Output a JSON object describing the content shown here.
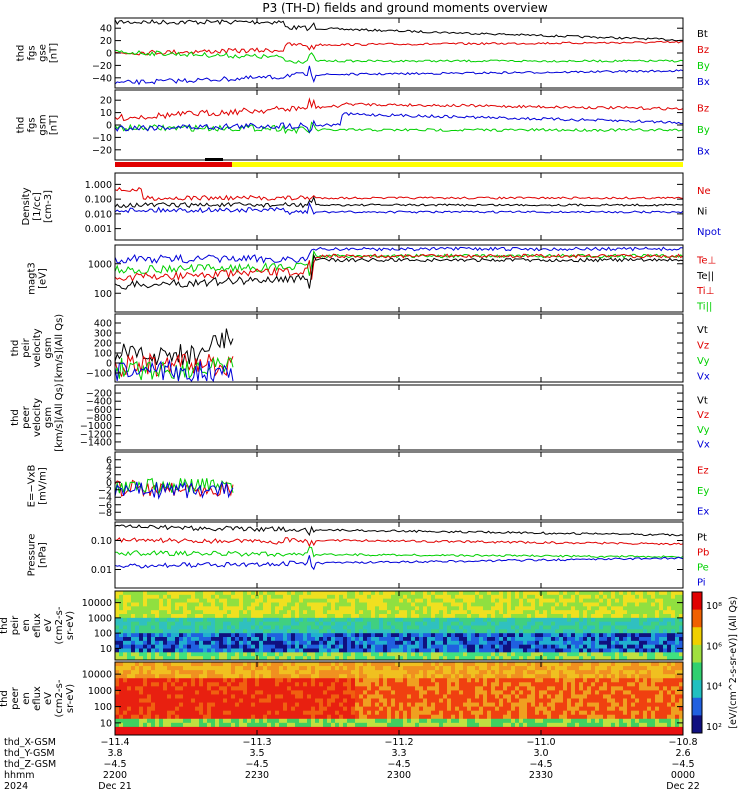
{
  "title": "P3 (TH-D) fields and ground moments overview",
  "colors": {
    "black": "#000000",
    "red": "#e00000",
    "green": "#00d000",
    "blue": "#0000d8",
    "yellow": "#ffff00"
  },
  "panels": [
    {
      "id": "fgs-gse",
      "ylabel": [
        "thd",
        "fgs",
        "gse",
        "[nT]"
      ],
      "yticks": [
        "40",
        "20",
        "0",
        "−20",
        "−40"
      ],
      "ylim": [
        -40,
        46
      ],
      "legend": [
        {
          "t": "Bt",
          "c": "black"
        },
        {
          "t": "Bz",
          "c": "red"
        },
        {
          "t": "By",
          "c": "green"
        },
        {
          "t": "Bx",
          "c": "blue"
        }
      ]
    },
    {
      "id": "fgs-gsm",
      "ylabel": [
        "thd",
        "fgs",
        "gsm",
        "[nT]"
      ],
      "yticks": [
        "20",
        "10",
        "0",
        "−10",
        "−20"
      ],
      "ylim": [
        -26,
        22
      ],
      "legend": [
        {
          "t": "Bz",
          "c": "red"
        },
        {
          "t": "By",
          "c": "green"
        },
        {
          "t": "Bx",
          "c": "blue"
        }
      ]
    },
    {
      "id": "density",
      "ylabel": [
        "Density",
        "[1/cc]",
        "[cm-3]"
      ],
      "yticks": [
        "1.000",
        "0.100",
        "0.010",
        "0.001"
      ],
      "log": true,
      "legend": [
        {
          "t": "Ne",
          "c": "red"
        },
        {
          "t": "Ni",
          "c": "black"
        },
        {
          "t": "Npot",
          "c": "blue"
        }
      ]
    },
    {
      "id": "temp",
      "ylabel": [
        "magt3",
        "[eV]"
      ],
      "yticks": [
        "1000",
        "100"
      ],
      "log": true,
      "legend": [
        {
          "t": "Te⊥",
          "c": "red"
        },
        {
          "t": "Te||",
          "c": "black"
        },
        {
          "t": "Ti⊥",
          "c": "red"
        },
        {
          "t": "Ti||",
          "c": "green"
        }
      ]
    },
    {
      "id": "peir-vel",
      "ylabel": [
        "thd",
        "peir",
        "velocity",
        "gsm",
        "[km/s](All Qs)"
      ],
      "yticks": [
        "400",
        "300",
        "200",
        "100",
        "0",
        "−100"
      ],
      "ylim": [
        -120,
        470
      ],
      "legend": [
        {
          "t": "Vt",
          "c": "black"
        },
        {
          "t": "Vz",
          "c": "red"
        },
        {
          "t": "Vy",
          "c": "green"
        },
        {
          "t": "Vx",
          "c": "blue"
        }
      ]
    },
    {
      "id": "peer-vel",
      "ylabel": [
        "thd",
        "peer",
        "velocity",
        "gsm",
        "[km/s](All Qs)"
      ],
      "yticks": [
        "−200",
        "−400",
        "−600",
        "−800",
        "−1000",
        "−1200",
        "−1400"
      ],
      "legend": [
        {
          "t": "Vt",
          "c": "black"
        },
        {
          "t": "Vz",
          "c": "red"
        },
        {
          "t": "Vy",
          "c": "green"
        },
        {
          "t": "Vx",
          "c": "blue"
        }
      ]
    },
    {
      "id": "efield",
      "ylabel": [
        "E=−VxB",
        "[mV/m]"
      ],
      "yticks": [
        "6",
        "4",
        "2",
        "0",
        "−2",
        "−4",
        "−6",
        "−8"
      ],
      "ylim": [
        -9,
        7
      ],
      "legend": [
        {
          "t": "Ez",
          "c": "red"
        },
        {
          "t": "Ey",
          "c": "green"
        },
        {
          "t": "Ex",
          "c": "blue"
        }
      ]
    },
    {
      "id": "pressure",
      "ylabel": [
        "Pressure",
        "[nPa]"
      ],
      "yticks": [
        "0.10",
        "0.01"
      ],
      "log": true,
      "legend": [
        {
          "t": "Pt",
          "c": "black"
        },
        {
          "t": "Pb",
          "c": "red"
        },
        {
          "t": "Pe",
          "c": "green"
        },
        {
          "t": "Pi",
          "c": "blue"
        }
      ]
    },
    {
      "id": "peir-eflux",
      "ylabel": [
        "thd",
        "peir",
        "en",
        "eflux",
        "eV",
        "(cm2-s-",
        "sr-eV)"
      ],
      "yticks": [
        "10000",
        "1000",
        "100",
        "10"
      ]
    },
    {
      "id": "peer-eflux",
      "ylabel": [
        "thd",
        "peer",
        "en",
        "eflux",
        "eV",
        "(cm2-s-",
        "sr-eV)"
      ],
      "yticks": [
        "10000",
        "1000",
        "100",
        "10"
      ]
    }
  ],
  "colorbar": {
    "label": "[eV/(cm^2-s-sr-eV)] (All Qs)",
    "ticks": [
      "10⁸",
      "10⁶",
      "10⁴",
      "10²"
    ]
  },
  "xaxis": {
    "row_labels": [
      "thd_X-GSM",
      "thd_Y-GSM",
      "thd_Z-GSM",
      "hhmm",
      "2024"
    ],
    "columns": [
      {
        "x": "−11.4",
        "y": "3.8",
        "z": "−4.5",
        "hhmm": "2200",
        "date": "Dec 21"
      },
      {
        "x": "−11.3",
        "y": "3.5",
        "z": "−4.5",
        "hhmm": "2230",
        "date": ""
      },
      {
        "x": "−11.2",
        "y": "3.3",
        "z": "−4.5",
        "hhmm": "2300",
        "date": ""
      },
      {
        "x": "−11.0",
        "y": "3.0",
        "z": "−4.5",
        "hhmm": "2330",
        "date": ""
      },
      {
        "x": "−10.8",
        "y": "2.6",
        "z": "−4.5",
        "hhmm": "0000",
        "date": "Dec 22"
      }
    ]
  },
  "chart_data": {
    "type": "line",
    "x_label": "hhmm",
    "x_ticks": [
      "2200",
      "2230",
      "2300",
      "2330",
      "0000"
    ],
    "series": [
      {
        "panel": "fgs-gse",
        "name": "Bt",
        "values_approx": [
          40,
          38,
          35,
          28,
          24,
          22,
          22
        ]
      },
      {
        "panel": "fgs-gse",
        "name": "Bz",
        "values_approx": [
          2,
          3,
          8,
          14,
          16,
          13,
          12
        ]
      },
      {
        "panel": "fgs-gse",
        "name": "By",
        "values_approx": [
          0,
          -2,
          -6,
          -4,
          -6,
          -8,
          -8
        ]
      },
      {
        "panel": "fgs-gse",
        "name": "Bx",
        "values_approx": [
          -36,
          -30,
          -26,
          -22,
          -20,
          -18,
          -18
        ]
      },
      {
        "panel": "fgs-gsm",
        "name": "Bz",
        "values_approx": [
          6,
          8,
          14,
          18,
          16,
          12,
          11
        ]
      },
      {
        "panel": "fgs-gsm",
        "name": "By",
        "values_approx": [
          -4,
          -8,
          -10,
          -4,
          -6,
          -8,
          -8
        ]
      },
      {
        "panel": "fgs-gsm",
        "name": "Bx",
        "values_approx": [
          -8,
          -4,
          -6,
          4,
          10,
          8,
          6
        ]
      }
    ]
  }
}
